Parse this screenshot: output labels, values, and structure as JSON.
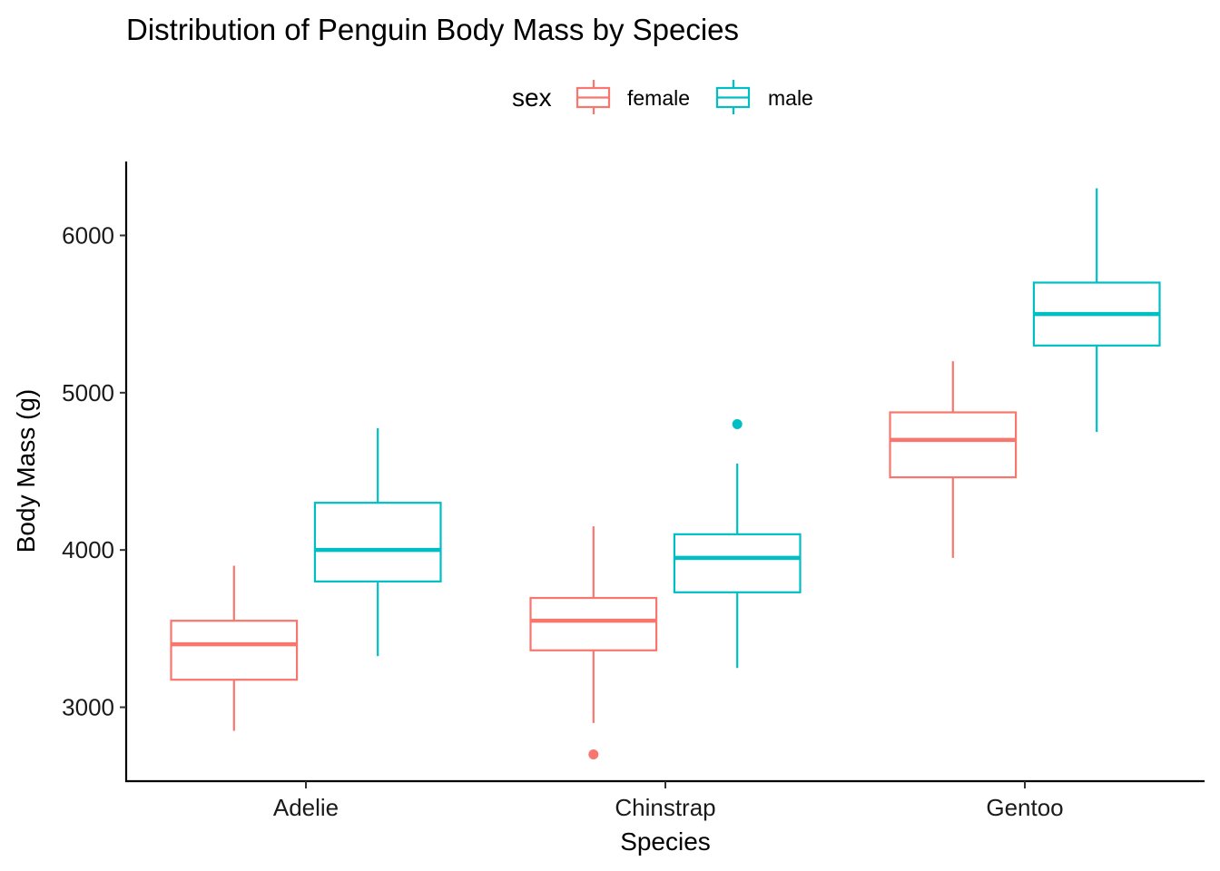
{
  "chart_data": {
    "type": "boxplot",
    "title": "Distribution of Penguin Body Mass by Species",
    "xlabel": "Species",
    "ylabel": "Body Mass (g)",
    "categories": [
      "Adelie",
      "Chinstrap",
      "Gentoo"
    ],
    "yticks": [
      3000,
      4000,
      5000,
      6000
    ],
    "ylim": [
      2530,
      6470
    ],
    "grid": false,
    "legend": {
      "title": "sex",
      "placement": "top",
      "entries": [
        "female",
        "male"
      ]
    },
    "series": [
      {
        "name": "female",
        "color": "#F8766D",
        "boxes": [
          {
            "category": "Adelie",
            "whisker_low": 2850,
            "q1": 3175,
            "median": 3400,
            "q3": 3550,
            "whisker_high": 3900,
            "outliers": []
          },
          {
            "category": "Chinstrap",
            "whisker_low": 2900,
            "q1": 3362,
            "median": 3550,
            "q3": 3695,
            "whisker_high": 4150,
            "outliers": [
              2700
            ]
          },
          {
            "category": "Gentoo",
            "whisker_low": 3950,
            "q1": 4462,
            "median": 4700,
            "q3": 4875,
            "whisker_high": 5200,
            "outliers": []
          }
        ]
      },
      {
        "name": "male",
        "color": "#00BFC4",
        "boxes": [
          {
            "category": "Adelie",
            "whisker_low": 3325,
            "q1": 3800,
            "median": 4000,
            "q3": 4300,
            "whisker_high": 4775,
            "outliers": []
          },
          {
            "category": "Chinstrap",
            "whisker_low": 3250,
            "q1": 3731,
            "median": 3950,
            "q3": 4100,
            "whisker_high": 4550,
            "outliers": [
              4800
            ]
          },
          {
            "category": "Gentoo",
            "whisker_low": 4750,
            "q1": 5300,
            "median": 5500,
            "q3": 5700,
            "whisker_high": 6300,
            "outliers": []
          }
        ]
      }
    ]
  }
}
